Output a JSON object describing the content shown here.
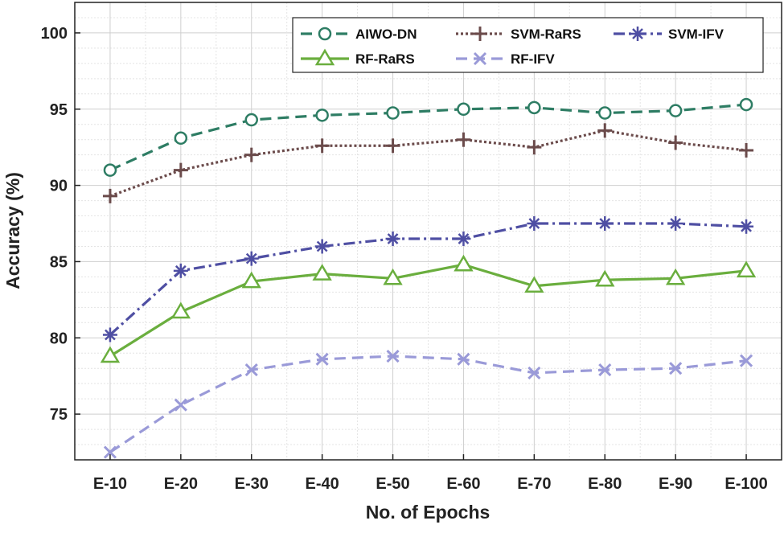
{
  "chart_data": {
    "type": "line",
    "title": "",
    "xlabel": "No. of Epochs",
    "ylabel": "Accuracy (%)",
    "categories": [
      "E-10",
      "E-20",
      "E-30",
      "E-40",
      "E-50",
      "E-60",
      "E-70",
      "E-80",
      "E-90",
      "E-100"
    ],
    "ylim": [
      72,
      102
    ],
    "yticks": [
      75,
      80,
      85,
      90,
      95,
      100
    ],
    "grid": true,
    "legend_position": "top-right",
    "series": [
      {
        "name": "AIWO-DN",
        "color": "#2e7d64",
        "dash": "dashed",
        "marker": "circle",
        "values": [
          91.0,
          93.1,
          94.3,
          94.6,
          94.75,
          95.0,
          95.1,
          94.75,
          94.9,
          95.3
        ]
      },
      {
        "name": "SVM-RaRS",
        "color": "#6b4b4b",
        "dash": "dotted",
        "marker": "plus",
        "values": [
          89.3,
          91.0,
          92.0,
          92.6,
          92.6,
          93.0,
          92.5,
          93.6,
          92.8,
          92.3
        ]
      },
      {
        "name": "SVM-IFV",
        "color": "#4f4fa3",
        "dash": "dashdot",
        "marker": "asterisk",
        "values": [
          80.2,
          84.4,
          85.2,
          86.0,
          86.5,
          86.5,
          87.5,
          87.5,
          87.5,
          87.3
        ]
      },
      {
        "name": "RF-RaRS",
        "color": "#6aae3e",
        "dash": "solid",
        "marker": "triangle",
        "values": [
          78.8,
          81.7,
          83.7,
          84.2,
          83.9,
          84.8,
          83.4,
          83.8,
          83.9,
          84.4
        ]
      },
      {
        "name": "RF-IFV",
        "color": "#9a9ad8",
        "dash": "dashed",
        "marker": "x",
        "values": [
          72.5,
          75.6,
          77.9,
          78.6,
          78.8,
          78.6,
          77.7,
          77.9,
          78.0,
          78.5
        ]
      }
    ]
  }
}
